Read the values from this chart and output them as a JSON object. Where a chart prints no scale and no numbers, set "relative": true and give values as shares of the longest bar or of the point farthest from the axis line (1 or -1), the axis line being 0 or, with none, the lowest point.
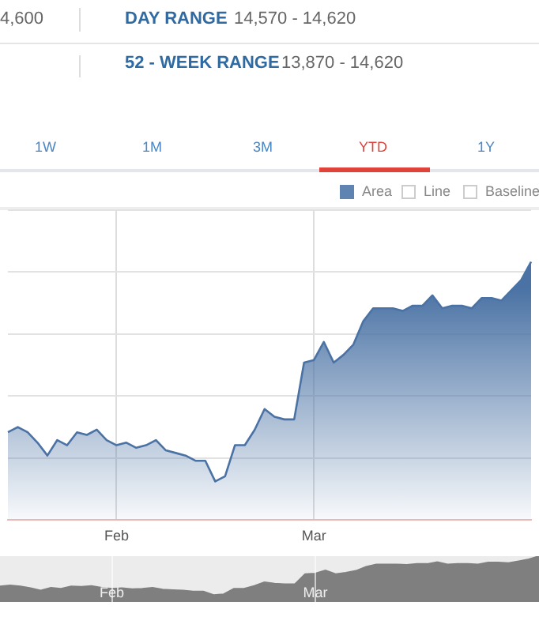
{
  "chart_data": [
    {
      "type": "area",
      "relative": true,
      "grid": true,
      "color": "#4a72a4",
      "categories": [
        null,
        null,
        null,
        null,
        null,
        null,
        null,
        null,
        null,
        null,
        null,
        "Feb",
        null,
        null,
        null,
        null,
        null,
        null,
        null,
        null,
        null,
        null,
        null,
        null,
        null,
        null,
        null,
        null,
        null,
        null,
        null,
        "Mar",
        null,
        null,
        null,
        null,
        null,
        null,
        null,
        null,
        null,
        null,
        null,
        null,
        null,
        null,
        null,
        null,
        null,
        null,
        null,
        null,
        null,
        null
      ],
      "values": [
        0.34,
        0.36,
        0.34,
        0.3,
        0.25,
        0.31,
        0.29,
        0.34,
        0.33,
        0.35,
        0.31,
        0.29,
        0.3,
        0.28,
        0.29,
        0.31,
        0.27,
        0.26,
        0.25,
        0.23,
        0.23,
        0.15,
        0.17,
        0.29,
        0.29,
        0.35,
        0.43,
        0.4,
        0.39,
        0.39,
        0.61,
        0.62,
        0.69,
        0.61,
        0.64,
        0.68,
        0.77,
        0.82,
        0.82,
        0.82,
        0.81,
        0.83,
        0.83,
        0.87,
        0.82,
        0.83,
        0.83,
        0.82,
        0.86,
        0.86,
        0.85,
        0.89,
        0.93,
        1
      ],
      "annotations": [
        "4,600",
        "DAY RANGE",
        "14,570 - 14,620",
        "52 - WEEK RANGE",
        "13,870 - 14,620",
        "1W",
        "1M",
        "3M",
        "YTD",
        "1Y",
        "Area",
        "Line",
        "Baseline"
      ]
    },
    {
      "type": "area",
      "relative": true,
      "grid": "x",
      "color": "#7f7f7f",
      "categories": [
        null,
        null,
        null,
        null,
        null,
        null,
        null,
        null,
        null,
        null,
        null,
        "Feb",
        null,
        null,
        null,
        null,
        null,
        null,
        null,
        null,
        null,
        null,
        null,
        null,
        null,
        null,
        null,
        null,
        null,
        null,
        null,
        "Mar",
        null,
        null,
        null,
        null,
        null,
        null,
        null,
        null,
        null,
        null,
        null,
        null,
        null,
        null,
        null,
        null,
        null,
        null,
        null,
        null,
        null,
        null
      ],
      "values": [
        0.34,
        0.36,
        0.34,
        0.3,
        0.25,
        0.31,
        0.29,
        0.34,
        0.33,
        0.35,
        0.31,
        0.29,
        0.3,
        0.28,
        0.29,
        0.31,
        0.27,
        0.26,
        0.25,
        0.23,
        0.23,
        0.15,
        0.17,
        0.29,
        0.29,
        0.35,
        0.43,
        0.4,
        0.39,
        0.39,
        0.61,
        0.62,
        0.69,
        0.61,
        0.64,
        0.68,
        0.77,
        0.82,
        0.82,
        0.82,
        0.81,
        0.83,
        0.83,
        0.87,
        0.82,
        0.83,
        0.83,
        0.82,
        0.86,
        0.86,
        0.85,
        0.89,
        0.93,
        1
      ]
    }
  ]
}
